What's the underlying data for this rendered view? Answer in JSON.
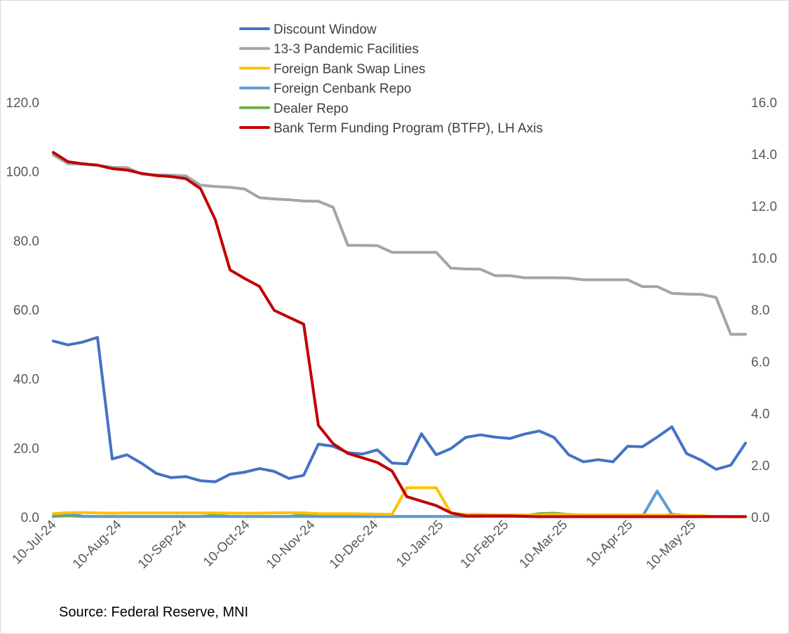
{
  "chart_data": {
    "type": "line",
    "title": "",
    "xlabel": "",
    "ylabel": "",
    "ylim_left": [
      0,
      120
    ],
    "ylim_right": [
      0,
      16
    ],
    "yticks_left": [
      "0.0",
      "20.0",
      "40.0",
      "60.0",
      "80.0",
      "100.0",
      "120.0"
    ],
    "yticks_right": [
      "0.0",
      "2.0",
      "4.0",
      "6.0",
      "8.0",
      "10.0",
      "12.0",
      "14.0",
      "16.0"
    ],
    "xticks": [
      "10-Jul-24",
      "10-Aug-24",
      "10-Sep-24",
      "10-Oct-24",
      "10-Nov-24",
      "10-Dec-24",
      "10-Jan-25",
      "10-Feb-25",
      "10-Mar-25",
      "10-Apr-25",
      "10-May-25"
    ],
    "x_start": "2024-07-10",
    "x_step_days": 7,
    "grid": false,
    "legend_position": "top",
    "series": [
      {
        "name": "Discount Window",
        "color": "#4472C4",
        "axis": "right",
        "values": [
          6.79,
          6.64,
          6.75,
          6.93,
          2.24,
          2.4,
          2.07,
          1.68,
          1.52,
          1.56,
          1.4,
          1.36,
          1.65,
          1.73,
          1.87,
          1.76,
          1.49,
          1.61,
          2.81,
          2.73,
          2.48,
          2.43,
          2.59,
          2.08,
          2.05,
          3.21,
          2.4,
          2.64,
          3.07,
          3.17,
          3.08,
          3.03,
          3.2,
          3.32,
          3.07,
          2.4,
          2.13,
          2.21,
          2.13,
          2.73,
          2.71,
          3.08,
          3.48,
          2.45,
          2.19,
          1.84,
          2.0,
          2.85
        ]
      },
      {
        "name": "13-3 Pandemic Facilities",
        "color": "#A5A5A5",
        "axis": "right",
        "values": [
          13.97,
          13.63,
          13.61,
          13.57,
          13.49,
          13.48,
          13.23,
          13.2,
          13.19,
          13.16,
          12.8,
          12.75,
          12.72,
          12.65,
          12.32,
          12.27,
          12.24,
          12.19,
          12.18,
          11.95,
          10.48,
          10.48,
          10.47,
          10.21,
          10.21,
          10.21,
          10.21,
          9.6,
          9.57,
          9.56,
          9.31,
          9.31,
          9.23,
          9.23,
          9.23,
          9.22,
          9.15,
          9.15,
          9.15,
          9.15,
          8.89,
          8.89,
          8.63,
          8.6,
          8.59,
          8.47,
          7.05,
          7.05
        ]
      },
      {
        "name": "Foreign Bank Swap Lines",
        "color": "#FFC000",
        "axis": "right",
        "values": [
          0.13,
          0.17,
          0.17,
          0.16,
          0.15,
          0.16,
          0.16,
          0.16,
          0.16,
          0.16,
          0.16,
          0.16,
          0.15,
          0.15,
          0.15,
          0.16,
          0.17,
          0.16,
          0.13,
          0.13,
          0.13,
          0.12,
          0.11,
          0.1,
          1.13,
          1.13,
          1.13,
          0.15,
          0.1,
          0.1,
          0.08,
          0.08,
          0.08,
          0.08,
          0.1,
          0.1,
          0.08,
          0.08,
          0.08,
          0.08,
          0.08,
          0.07,
          0.07,
          0.06,
          0.05,
          0.02,
          0.01,
          0.01
        ]
      },
      {
        "name": "Foreign Cenbank Repo",
        "color": "#5B9BD5",
        "axis": "right",
        "values": [
          0.05,
          0.13,
          0.03,
          0.02,
          0.02,
          0.02,
          0.02,
          0.02,
          0.02,
          0.02,
          0.02,
          0.02,
          0.02,
          0.02,
          0.02,
          0.02,
          0.02,
          0.02,
          0.02,
          0.02,
          0.02,
          0.02,
          0.02,
          0.02,
          0.02,
          0.02,
          0.02,
          0.02,
          0.02,
          0.02,
          0.02,
          0.02,
          0.02,
          0.02,
          0.02,
          0.02,
          0.02,
          0.02,
          0.02,
          0.02,
          0.02,
          1.0,
          0.1,
          0.05,
          0.02,
          0.02,
          0.02,
          0.02
        ]
      },
      {
        "name": "Dealer Repo",
        "color": "#70AD47",
        "axis": "right",
        "values": [
          0.02,
          0.05,
          0.02,
          0.02,
          0.02,
          0.02,
          0.02,
          0.02,
          0.02,
          0.02,
          0.02,
          0.07,
          0.02,
          0.02,
          0.02,
          0.02,
          0.02,
          0.1,
          0.02,
          0.02,
          0.02,
          0.02,
          0.02,
          0.02,
          0.02,
          0.02,
          0.02,
          0.02,
          0.02,
          0.02,
          0.05,
          0.02,
          0.05,
          0.13,
          0.15,
          0.1,
          0.05,
          0.03,
          0.02,
          0.02,
          0.02,
          0.02,
          0.1,
          0.05,
          0.02,
          0.02,
          0.01,
          0.01
        ]
      },
      {
        "name": "Bank Term Funding Program (BTFP), LH Axis",
        "color": "#C00000",
        "axis": "left",
        "values": [
          105.5,
          102.8,
          102.2,
          101.8,
          100.8,
          100.4,
          99.4,
          98.8,
          98.5,
          97.9,
          95.0,
          86.0,
          71.5,
          69.0,
          66.7,
          59.8,
          57.8,
          55.8,
          26.5,
          21.2,
          18.4,
          17.1,
          15.8,
          13.3,
          5.9,
          4.6,
          3.3,
          1.2,
          0.3,
          0.3,
          0.3,
          0.3,
          0.2,
          0.1,
          0.1,
          0.1,
          0.1,
          0.1,
          0.1,
          0.1,
          0.1,
          0.1,
          0.1,
          0.1,
          0.1,
          0.1,
          0.1,
          0.1
        ]
      }
    ]
  },
  "source_text": "Source: Federal Reserve, MNI"
}
